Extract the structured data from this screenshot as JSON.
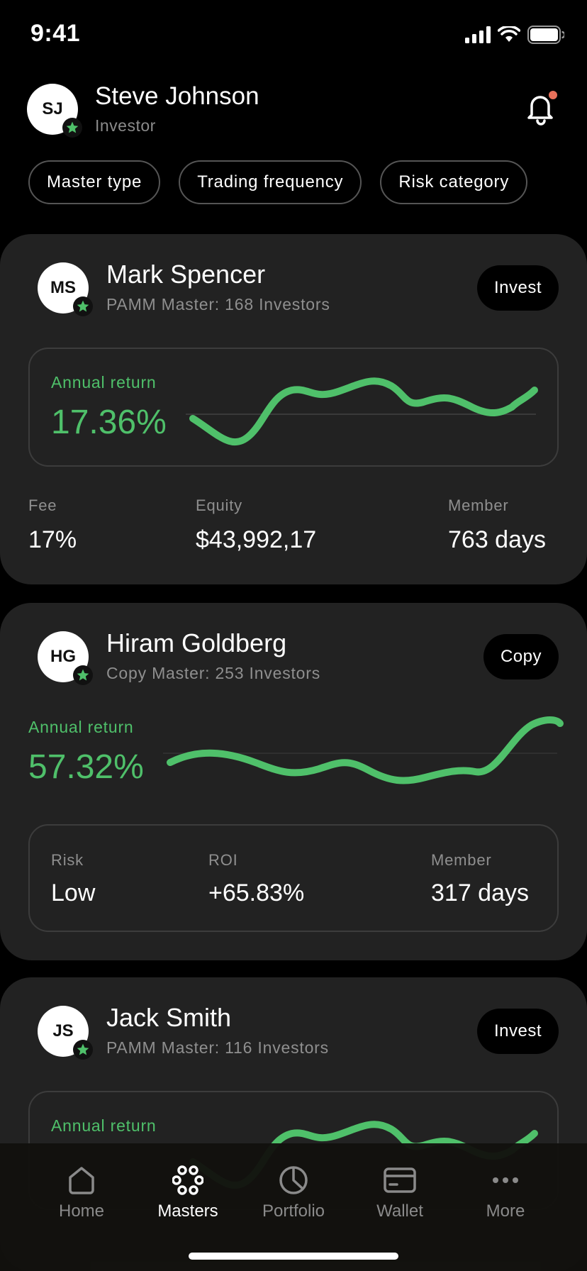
{
  "status_bar": {
    "time": "9:41"
  },
  "header": {
    "initials": "SJ",
    "name": "Steve Johnson",
    "role": "Investor"
  },
  "filters": [
    "Master type",
    "Trading frequency",
    "Risk category"
  ],
  "cards": [
    {
      "initials": "MS",
      "name": "Mark Spencer",
      "subtitle": "PAMM Master: 168 Investors",
      "action": "Invest",
      "return_label": "Annual return",
      "return_value": "17.36%",
      "stats": [
        {
          "label": "Fee",
          "value": "17%"
        },
        {
          "label": "Equity",
          "value": "$43,992,17"
        },
        {
          "label": "Member",
          "value": "763 days"
        }
      ]
    },
    {
      "initials": "HG",
      "name": "Hiram Goldberg",
      "subtitle": "Copy Master: 253 Investors",
      "action": "Copy",
      "return_label": "Annual return",
      "return_value": "57.32%",
      "stats": [
        {
          "label": "Risk",
          "value": "Low"
        },
        {
          "label": "ROI",
          "value": "+65.83%"
        },
        {
          "label": "Member",
          "value": "317 days"
        }
      ]
    },
    {
      "initials": "JS",
      "name": "Jack Smith",
      "subtitle": "PAMM Master: 116 Investors",
      "action": "Invest",
      "return_label": "Annual return"
    }
  ],
  "nav": {
    "active": "Masters",
    "items": [
      {
        "label": "Home",
        "icon": "home-icon"
      },
      {
        "label": "Masters",
        "icon": "masters-icon"
      },
      {
        "label": "Portfolio",
        "icon": "portfolio-icon"
      },
      {
        "label": "Wallet",
        "icon": "wallet-icon"
      },
      {
        "label": "More",
        "icon": "more-icon"
      }
    ]
  },
  "colors": {
    "accent_green": "#4fc06a",
    "card_bg": "#222222",
    "notification_dot": "#e8705a"
  }
}
